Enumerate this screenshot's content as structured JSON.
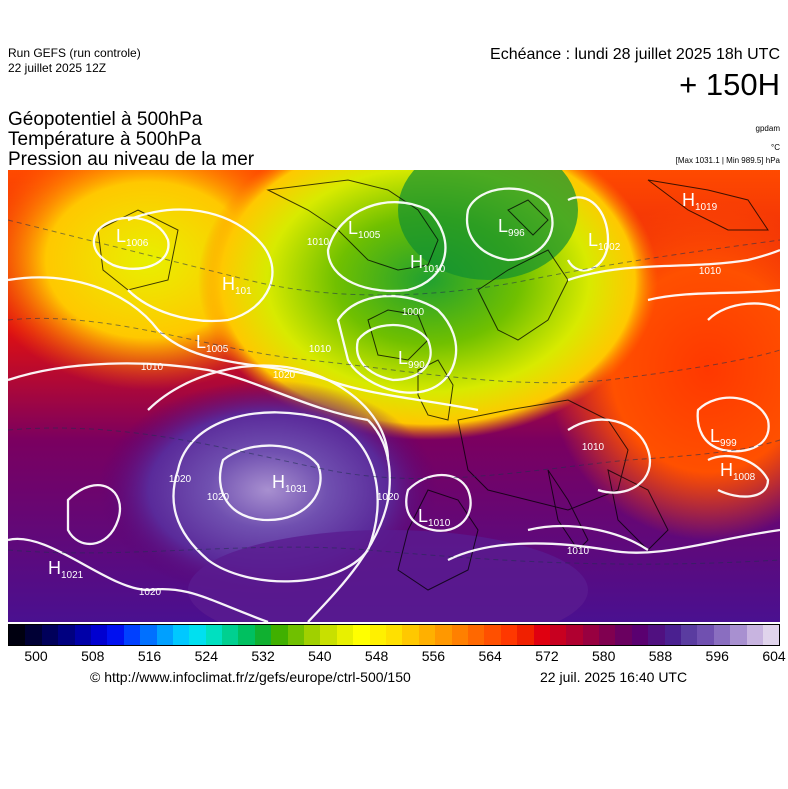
{
  "header": {
    "run_title": "Run GEFS (run controle)",
    "run_date": "22 juillet 2025 12Z",
    "valid_time": "Echéance : lundi 28 juillet 2025 18h UTC",
    "lead_time": "+ 150H"
  },
  "parameters": {
    "line1": "Géopotentiel à 500hPa",
    "line2": "Température à 500hPa",
    "line3": "Pression au niveau de la mer"
  },
  "units": {
    "geopotential": "gpdam",
    "temperature": "°C",
    "pressure_range": "[Max 1031.1 | Min 989.5] hPa"
  },
  "pressure_centers": [
    {
      "type": "L",
      "value": "1006"
    },
    {
      "type": "L",
      "value": "1005"
    },
    {
      "type": "H",
      "value": "1010"
    },
    {
      "type": "L",
      "value": "996"
    },
    {
      "type": "H",
      "value": "1019"
    },
    {
      "type": "L",
      "value": "1002"
    },
    {
      "type": "H",
      "value": "101"
    },
    {
      "type": "L",
      "value": "1005"
    },
    {
      "type": "L",
      "value": "990"
    },
    {
      "type": "H",
      "value": "1031"
    },
    {
      "type": "L",
      "value": "1010"
    },
    {
      "type": "H",
      "value": "1021"
    },
    {
      "type": "L",
      "value": "999"
    },
    {
      "type": "H",
      "value": "1008"
    }
  ],
  "isobar_labels": [
    "1010",
    "1010",
    "1010",
    "1020",
    "1020",
    "1020",
    "1020",
    "1020",
    "1010",
    "1000",
    "1010",
    "1010"
  ],
  "colorbar": {
    "ticks": [
      "500",
      "508",
      "516",
      "524",
      "532",
      "540",
      "548",
      "556",
      "564",
      "572",
      "580",
      "588",
      "596",
      "604"
    ],
    "colors": [
      "#000010",
      "#000035",
      "#00005a",
      "#000080",
      "#0000a8",
      "#0000d0",
      "#0010f0",
      "#0040ff",
      "#0070ff",
      "#00a0ff",
      "#00c8ff",
      "#00e0f0",
      "#00e0c0",
      "#00d090",
      "#00c060",
      "#10b030",
      "#40b000",
      "#70c000",
      "#a0d000",
      "#c8e000",
      "#e8f000",
      "#ffff00",
      "#fff000",
      "#ffe000",
      "#ffc800",
      "#ffb000",
      "#ff9800",
      "#ff8000",
      "#ff6800",
      "#ff5000",
      "#ff3800",
      "#f02000",
      "#e00010",
      "#c80020",
      "#b00030",
      "#980040",
      "#800050",
      "#6a0060",
      "#5a0070",
      "#501080",
      "#4a2090",
      "#5a3ca0",
      "#7050b0",
      "#8a6ec0",
      "#a890d0",
      "#c8b4e0",
      "#e0d4ec"
    ]
  },
  "footer": {
    "credit": "© http://www.infoclimat.fr/z/gefs/europe/ctrl-500/150",
    "stamp": "22 juil. 2025 16:40 UTC"
  }
}
